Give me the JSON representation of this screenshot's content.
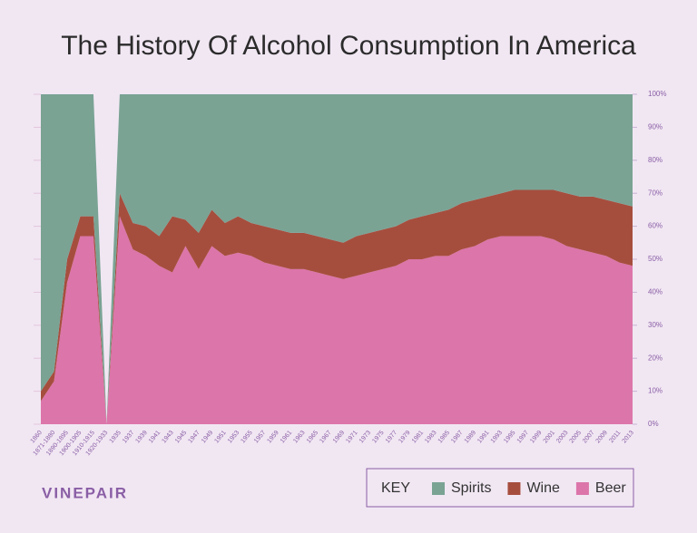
{
  "chart_data": {
    "type": "stacked_area",
    "title": "The History Of Alcohol Consumption In America",
    "brand": "VINEPAIR",
    "legend_title": "KEY",
    "categories": [
      "1860",
      "1871-1880",
      "1890-1895",
      "1900-1905",
      "1910-1915",
      "1920-1933",
      "1935",
      "1937",
      "1939",
      "1941",
      "1943",
      "1945",
      "1947",
      "1949",
      "1951",
      "1953",
      "1955",
      "1957",
      "1959",
      "1961",
      "1963",
      "1965",
      "1967",
      "1969",
      "1971",
      "1973",
      "1975",
      "1977",
      "1979",
      "1981",
      "1983",
      "1985",
      "1987",
      "1989",
      "1991",
      "1993",
      "1995",
      "1997",
      "1999",
      "2001",
      "2003",
      "2005",
      "2007",
      "2009",
      "2011",
      "2013"
    ],
    "series": [
      {
        "name": "Spirits",
        "color": "#7aa394",
        "values": [
          90,
          84,
          50,
          37,
          37,
          0,
          30,
          39,
          40,
          43,
          37,
          38,
          42,
          35,
          39,
          37,
          39,
          40,
          41,
          42,
          42,
          43,
          44,
          45,
          43,
          42,
          41,
          40,
          38,
          37,
          36,
          35,
          33,
          32,
          31,
          30,
          29,
          29,
          29,
          29,
          30,
          31,
          31,
          32,
          33,
          34
        ]
      },
      {
        "name": "Wine",
        "color": "#a64e3e",
        "values": [
          3,
          3,
          7,
          6,
          6,
          0,
          7,
          8,
          9,
          9,
          17,
          8,
          11,
          11,
          10,
          11,
          10,
          11,
          11,
          11,
          11,
          11,
          11,
          11,
          12,
          12,
          12,
          12,
          12,
          13,
          13,
          14,
          14,
          14,
          13,
          13,
          14,
          14,
          14,
          15,
          16,
          16,
          17,
          17,
          18,
          18
        ]
      },
      {
        "name": "Beer",
        "color": "#dc75aa",
        "values": [
          7,
          13,
          43,
          57,
          57,
          0,
          63,
          53,
          51,
          48,
          46,
          54,
          47,
          54,
          51,
          52,
          51,
          49,
          48,
          47,
          47,
          46,
          45,
          44,
          45,
          46,
          47,
          48,
          50,
          50,
          51,
          51,
          53,
          54,
          56,
          57,
          57,
          57,
          57,
          56,
          54,
          53,
          52,
          51,
          49,
          48
        ]
      }
    ],
    "ylim": [
      0,
      100
    ],
    "yticks": [
      {
        "value": 0,
        "label": "0%"
      },
      {
        "value": 10,
        "label": "10%"
      },
      {
        "value": 20,
        "label": "20%"
      },
      {
        "value": 30,
        "label": "30%"
      },
      {
        "value": 40,
        "label": "40%"
      },
      {
        "value": 50,
        "label": "50%"
      },
      {
        "value": 60,
        "label": "60%"
      },
      {
        "value": 70,
        "label": "70%"
      },
      {
        "value": 80,
        "label": "80%"
      },
      {
        "value": 90,
        "label": "90%"
      },
      {
        "value": 100,
        "label": "100%"
      }
    ]
  }
}
